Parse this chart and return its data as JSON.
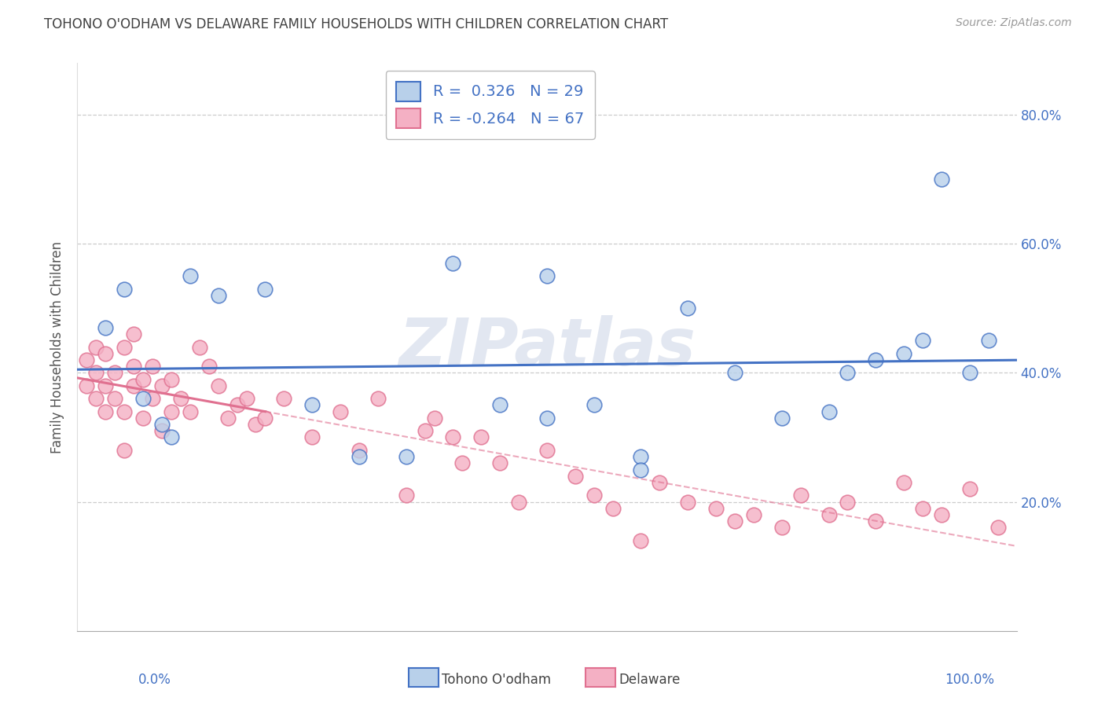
{
  "title": "TOHONO O'ODHAM VS DELAWARE FAMILY HOUSEHOLDS WITH CHILDREN CORRELATION CHART",
  "source": "Source: ZipAtlas.com",
  "ylabel": "Family Households with Children",
  "watermark": "ZIPatlas",
  "xlim": [
    0.0,
    100.0
  ],
  "ylim": [
    0.0,
    88.0
  ],
  "ytick_vals": [
    20.0,
    40.0,
    60.0,
    80.0
  ],
  "xtick_vals": [
    0.0,
    100.0
  ],
  "blue_label": "Tohono O'odham",
  "pink_label": "Delaware",
  "blue_R": 0.326,
  "blue_N": 29,
  "pink_R": -0.264,
  "pink_N": 67,
  "blue_face": "#b8d0ea",
  "blue_edge": "#4472c4",
  "pink_face": "#f4b0c4",
  "pink_edge": "#e07090",
  "blue_line": "#4472c4",
  "pink_line": "#e07090",
  "background": "#ffffff",
  "grid_color": "#cccccc",
  "title_color": "#404040",
  "tick_color": "#4472c4",
  "blue_x": [
    3,
    5,
    12,
    15,
    20,
    25,
    30,
    35,
    40,
    45,
    50,
    55,
    60,
    65,
    70,
    75,
    80,
    82,
    85,
    88,
    90,
    92,
    95,
    97,
    7,
    9,
    10,
    50,
    60
  ],
  "blue_y": [
    47,
    53,
    55,
    52,
    53,
    35,
    27,
    27,
    57,
    35,
    33,
    35,
    27,
    50,
    40,
    33,
    34,
    40,
    42,
    43,
    45,
    70,
    40,
    45,
    36,
    32,
    30,
    55,
    25
  ],
  "pink_x": [
    1,
    1,
    2,
    2,
    2,
    3,
    3,
    3,
    4,
    4,
    5,
    5,
    5,
    6,
    6,
    6,
    7,
    7,
    8,
    8,
    9,
    9,
    10,
    10,
    11,
    12,
    13,
    14,
    15,
    16,
    17,
    18,
    19,
    20,
    22,
    25,
    28,
    30,
    32,
    35,
    37,
    38,
    40,
    41,
    43,
    45,
    47,
    50,
    53,
    55,
    57,
    60,
    62,
    65,
    68,
    70,
    72,
    75,
    77,
    80,
    82,
    85,
    88,
    90,
    92,
    95,
    98
  ],
  "pink_y": [
    38,
    42,
    36,
    40,
    44,
    34,
    38,
    43,
    36,
    40,
    28,
    34,
    44,
    38,
    41,
    46,
    33,
    39,
    36,
    41,
    31,
    38,
    34,
    39,
    36,
    34,
    44,
    41,
    38,
    33,
    35,
    36,
    32,
    33,
    36,
    30,
    34,
    28,
    36,
    21,
    31,
    33,
    30,
    26,
    30,
    26,
    20,
    28,
    24,
    21,
    19,
    14,
    23,
    20,
    19,
    17,
    18,
    16,
    21,
    18,
    20,
    17,
    23,
    19,
    18,
    22,
    16
  ]
}
